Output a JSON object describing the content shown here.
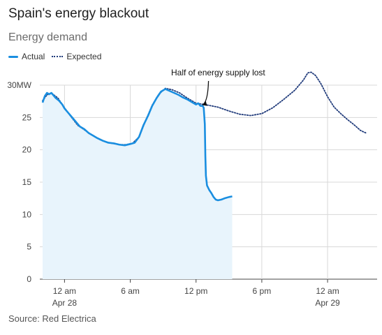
{
  "chart_data": {
    "type": "line",
    "title": "Spain's energy blackout",
    "subtitle": "Energy demand",
    "source": "Source: Red Electrica",
    "y_unit_label": "30MW",
    "ylim": [
      0,
      30
    ],
    "y_ticks": [
      0,
      5,
      10,
      15,
      20,
      25,
      30
    ],
    "x_ticks": [
      {
        "hour": 0,
        "line1": "12 am",
        "line2": "Apr 28"
      },
      {
        "hour": 6,
        "line1": "6 am",
        "line2": ""
      },
      {
        "hour": 12,
        "line1": "12 pm",
        "line2": ""
      },
      {
        "hour": 18,
        "line1": "6 pm",
        "line2": ""
      },
      {
        "hour": 24,
        "line1": "12 am",
        "line2": "Apr 29"
      }
    ],
    "xlim": [
      -2,
      27.5
    ],
    "annotation": {
      "text": "Half of energy supply lost",
      "hour": 12.5,
      "value": 26.8
    },
    "grid": true,
    "legend_position": "top-left",
    "series": [
      {
        "name": "Actual",
        "color": "#1a8ee0",
        "fill": "#e8f4fc",
        "points": [
          [
            -2,
            27.3
          ],
          [
            -1.8,
            28.3
          ],
          [
            -1.6,
            28.8
          ],
          [
            -1.4,
            28.6
          ],
          [
            -1.2,
            28.8
          ],
          [
            -1,
            28.4
          ],
          [
            -0.8,
            28.0
          ],
          [
            -0.5,
            27.6
          ],
          [
            -0.2,
            27.0
          ],
          [
            0,
            26.4
          ],
          [
            0.3,
            25.8
          ],
          [
            0.6,
            25.2
          ],
          [
            1,
            24.4
          ],
          [
            1.4,
            23.6
          ],
          [
            1.8,
            23.2
          ],
          [
            2.2,
            22.6
          ],
          [
            2.6,
            22.2
          ],
          [
            3,
            21.8
          ],
          [
            3.5,
            21.4
          ],
          [
            4,
            21.1
          ],
          [
            4.5,
            21.0
          ],
          [
            5,
            20.8
          ],
          [
            5.5,
            20.7
          ],
          [
            6,
            20.9
          ],
          [
            6.4,
            21.1
          ],
          [
            6.8,
            22.0
          ],
          [
            7.2,
            23.8
          ],
          [
            7.6,
            25.2
          ],
          [
            8,
            26.8
          ],
          [
            8.4,
            28.0
          ],
          [
            8.8,
            29.0
          ],
          [
            9.2,
            29.4
          ],
          [
            9.6,
            29.1
          ],
          [
            10,
            28.8
          ],
          [
            10.4,
            28.5
          ],
          [
            10.8,
            28.1
          ],
          [
            11.2,
            27.8
          ],
          [
            11.6,
            27.4
          ],
          [
            12,
            27.0
          ],
          [
            12.2,
            27.2
          ],
          [
            12.4,
            26.8
          ],
          [
            12.6,
            26.8
          ],
          [
            12.7,
            26.5
          ],
          [
            12.8,
            24.0
          ],
          [
            12.85,
            19.0
          ],
          [
            12.9,
            16.0
          ],
          [
            13.0,
            14.5
          ],
          [
            13.2,
            13.8
          ],
          [
            13.4,
            13.3
          ],
          [
            13.6,
            12.7
          ],
          [
            13.8,
            12.3
          ],
          [
            14,
            12.2
          ],
          [
            14.3,
            12.3
          ],
          [
            14.6,
            12.5
          ],
          [
            15,
            12.7
          ],
          [
            15.3,
            12.8
          ]
        ]
      },
      {
        "name": "Expected",
        "color": "#1f3a7a",
        "points": [
          [
            -2,
            27.6
          ],
          [
            -1.6,
            28.5
          ],
          [
            -1.2,
            28.8
          ],
          [
            -0.6,
            28.0
          ],
          [
            0,
            26.5
          ],
          [
            0.6,
            25.1
          ],
          [
            1.2,
            23.8
          ],
          [
            1.8,
            23.1
          ],
          [
            2.5,
            22.3
          ],
          [
            3.2,
            21.6
          ],
          [
            4,
            21.1
          ],
          [
            5,
            20.8
          ],
          [
            5.6,
            20.8
          ],
          [
            6.2,
            21.0
          ],
          [
            6.8,
            22.0
          ],
          [
            7.4,
            24.5
          ],
          [
            8,
            26.9
          ],
          [
            8.6,
            28.6
          ],
          [
            9.2,
            29.5
          ],
          [
            9.8,
            29.3
          ],
          [
            10.5,
            28.8
          ],
          [
            11.2,
            28.0
          ],
          [
            12,
            27.2
          ],
          [
            12.8,
            27.0
          ],
          [
            13.4,
            26.8
          ],
          [
            14,
            26.6
          ],
          [
            15,
            26.0
          ],
          [
            16,
            25.5
          ],
          [
            17,
            25.3
          ],
          [
            18,
            25.6
          ],
          [
            19,
            26.5
          ],
          [
            20,
            27.8
          ],
          [
            21,
            29.2
          ],
          [
            21.8,
            30.8
          ],
          [
            22.2,
            31.9
          ],
          [
            22.5,
            32.0
          ],
          [
            22.9,
            31.5
          ],
          [
            23.4,
            30.2
          ],
          [
            24,
            28.2
          ],
          [
            24.6,
            26.6
          ],
          [
            25.2,
            25.6
          ],
          [
            25.8,
            24.7
          ],
          [
            26.4,
            23.9
          ],
          [
            27,
            23.0
          ],
          [
            27.5,
            22.6
          ]
        ]
      }
    ]
  }
}
